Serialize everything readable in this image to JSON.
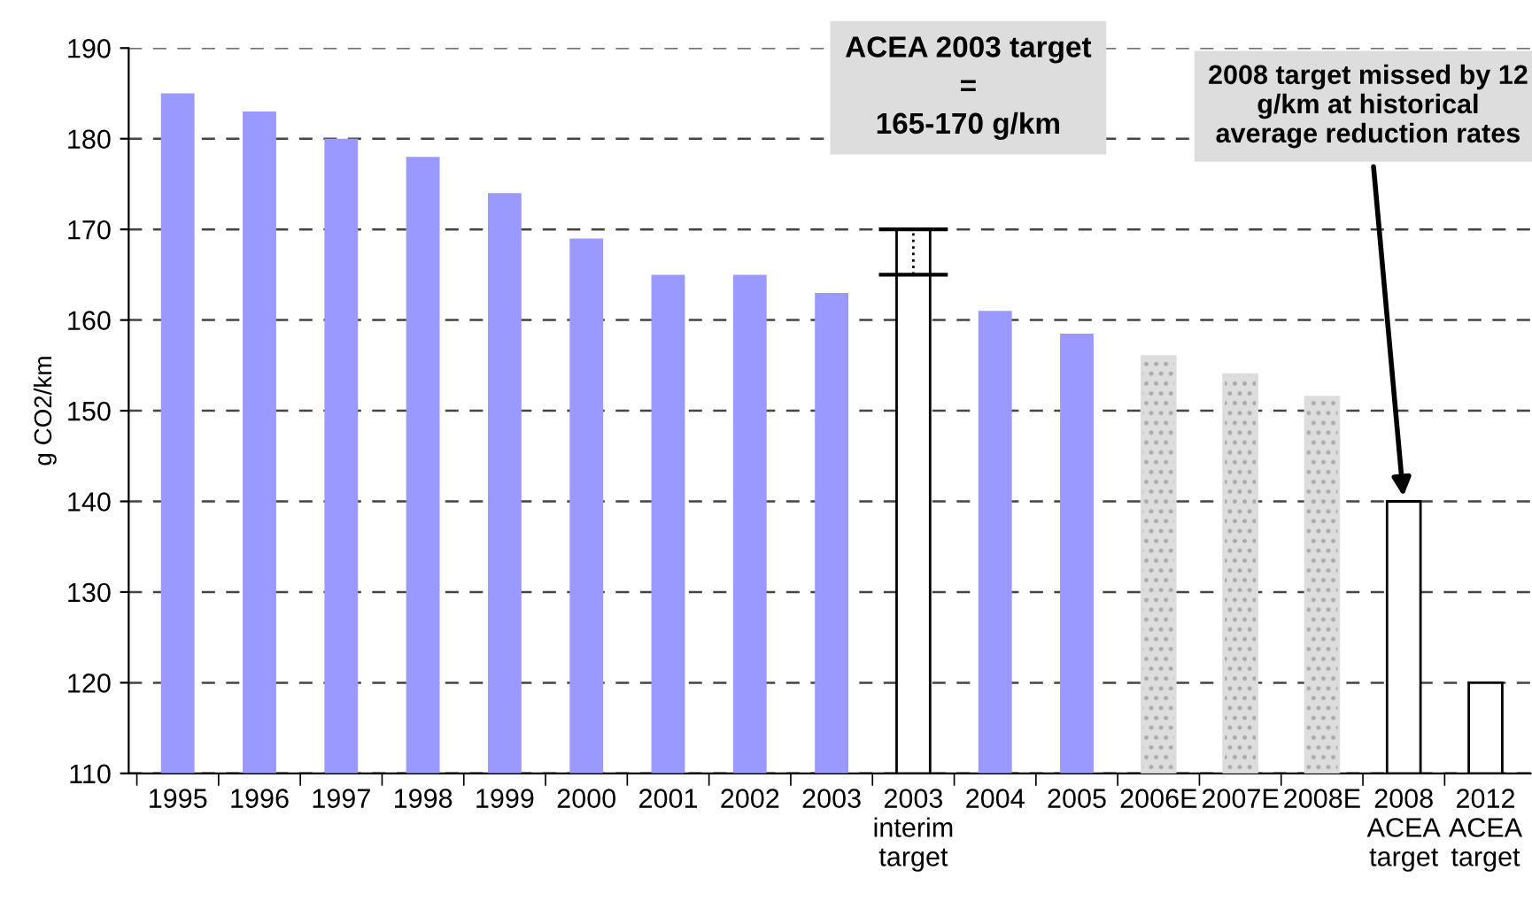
{
  "chart_data": {
    "type": "bar",
    "categories": [
      "1995",
      "1996",
      "1997",
      "1998",
      "1999",
      "2000",
      "2001",
      "2002",
      "2003",
      "2003\ninterim\ntarget",
      "2004",
      "2005",
      "2006E",
      "2007E",
      "2008E",
      "2008\nACEA\ntarget",
      "2012\nACEA\ntarget"
    ],
    "values": [
      185,
      183,
      180,
      178,
      174,
      169,
      165,
      165,
      163,
      170,
      161,
      158.5,
      156,
      154,
      151.5,
      140,
      120
    ],
    "colors": [
      "#9999ff",
      "#9999ff",
      "#9999ff",
      "#9999ff",
      "#9999ff",
      "#9999ff",
      "#9999ff",
      "#9999ff",
      "#9999ff",
      "#ffffff",
      "#9999ff",
      "#9999ff",
      "#dddddd",
      "#dddddd",
      "#dddddd",
      "#ffffff",
      "#ffffff"
    ],
    "errors": [
      null,
      null,
      null,
      null,
      null,
      null,
      null,
      null,
      null,
      [
        165,
        170
      ],
      null,
      null,
      null,
      null,
      null,
      null,
      null
    ],
    "ylabel": "g CO2/km",
    "ylim": [
      110,
      190
    ],
    "yticks": [
      110,
      120,
      130,
      140,
      150,
      160,
      170,
      180,
      190
    ],
    "grid": "y",
    "legend": false,
    "annotations": [
      "ACEA 2003 target\n=\n165-170 g/km",
      {
        "text": "2008 target missed by 12\ng/km at historical\naverage reduction rates",
        "x": "2008\nACEA\ntarget",
        "y": 140
      }
    ]
  }
}
